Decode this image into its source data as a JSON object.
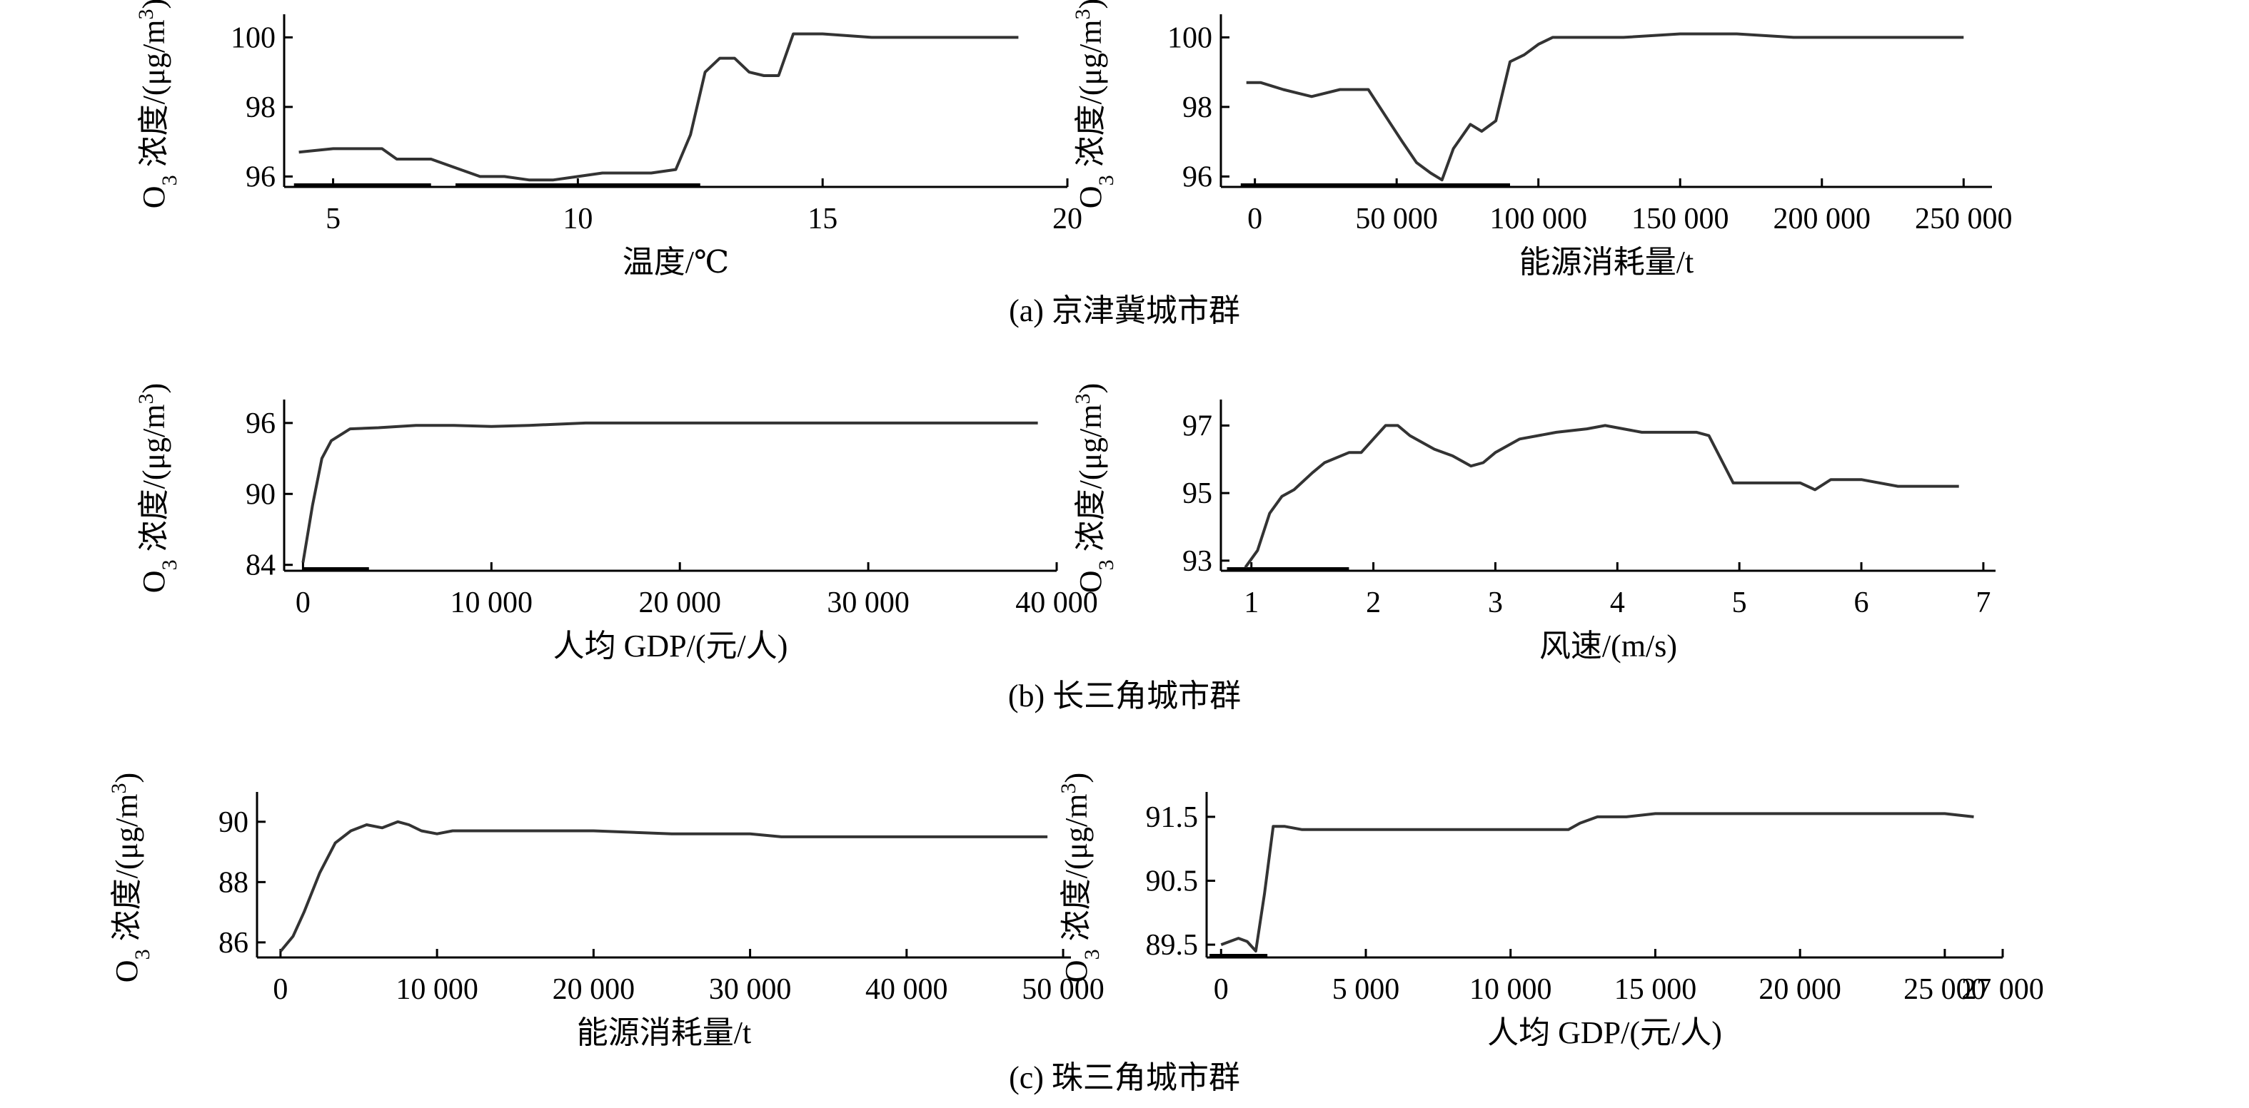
{
  "figure": {
    "captions": [
      "(a) 京津冀城市群",
      "(b) 长三角城市群",
      "(c) 珠三角城市群"
    ]
  },
  "chart_data": [
    {
      "type": "line",
      "group": "(a) 京津冀城市群",
      "xlabel": "温度/℃",
      "ylabel": "O3 浓度/(μg/m3)",
      "xlim": [
        4,
        20
      ],
      "ylim": [
        95.7,
        100.5
      ],
      "xticks": [
        5,
        10,
        15,
        20
      ],
      "xtick_labels": [
        "5",
        "10",
        "15",
        "20"
      ],
      "yticks": [
        96,
        98,
        100
      ],
      "ytick_labels": [
        "96",
        "98",
        "100"
      ],
      "rug": [
        [
          4.2,
          7.0
        ],
        [
          7.5,
          12.5
        ]
      ],
      "series": [
        {
          "x": [
            4.3,
            5,
            5.5,
            6,
            6.3,
            7,
            7.2,
            7.6,
            8,
            8.5,
            9,
            9.5,
            10,
            10.5,
            11,
            11.5,
            12,
            12.3,
            12.6,
            12.9,
            13.2,
            13.5,
            13.8,
            14.1,
            14.4,
            15,
            16,
            17,
            18,
            19
          ],
          "y": [
            96.7,
            96.8,
            96.8,
            96.8,
            96.5,
            96.5,
            96.4,
            96.2,
            96.0,
            96.0,
            95.9,
            95.9,
            96.0,
            96.1,
            96.1,
            96.1,
            96.2,
            97.2,
            99.0,
            99.4,
            99.4,
            99.0,
            98.9,
            98.9,
            100.1,
            100.1,
            100.0,
            100.0,
            100.0,
            100.0
          ]
        }
      ]
    },
    {
      "type": "line",
      "group": "(a) 京津冀城市群",
      "xlabel": "能源消耗量/t",
      "ylabel": "O3 浓度/(μg/m3)",
      "xlim": [
        -12000,
        260000
      ],
      "ylim": [
        95.7,
        100.5
      ],
      "xticks": [
        0,
        50000,
        100000,
        150000,
        200000,
        250000
      ],
      "xtick_labels": [
        "0",
        "50 000",
        "100 000",
        "150 000",
        "200 000",
        "250 000"
      ],
      "yticks": [
        96,
        98,
        100
      ],
      "ytick_labels": [
        "96",
        "98",
        "100"
      ],
      "rug": [
        [
          -5000,
          90000
        ]
      ],
      "series": [
        {
          "x": [
            -3000,
            2000,
            10000,
            20000,
            30000,
            40000,
            48000,
            52000,
            57000,
            62000,
            66000,
            70000,
            76000,
            80000,
            85000,
            90000,
            95000,
            100000,
            105000,
            110000,
            130000,
            150000,
            170000,
            190000,
            210000,
            230000,
            250000
          ],
          "y": [
            98.7,
            98.7,
            98.5,
            98.3,
            98.5,
            98.5,
            97.5,
            97.0,
            96.4,
            96.1,
            95.9,
            96.8,
            97.5,
            97.3,
            97.6,
            99.3,
            99.5,
            99.8,
            100.0,
            100.0,
            100.0,
            100.1,
            100.1,
            100.0,
            100.0,
            100.0,
            100.0
          ]
        }
      ]
    },
    {
      "type": "line",
      "group": "(b) 长三角城市群",
      "xlabel": "人均 GDP/(元/人)",
      "ylabel": "O3 浓度/(μg/m3)",
      "xlim": [
        -1000,
        40000
      ],
      "ylim": [
        83.5,
        97.5
      ],
      "xticks": [
        0,
        10000,
        20000,
        30000,
        40000
      ],
      "xtick_labels": [
        "0",
        "10 000",
        "20 000",
        "30 000",
        "40 000"
      ],
      "yticks": [
        84,
        90,
        96
      ],
      "ytick_labels": [
        "84",
        "90",
        "96"
      ],
      "rug": [
        [
          0,
          3500
        ]
      ],
      "series": [
        {
          "x": [
            0,
            500,
            1000,
            1500,
            2500,
            4000,
            6000,
            8000,
            10000,
            12000,
            15000,
            20000,
            25000,
            30000,
            35000,
            39000
          ],
          "y": [
            84.2,
            89.0,
            93.0,
            94.5,
            95.5,
            95.6,
            95.8,
            95.8,
            95.7,
            95.8,
            96.0,
            96.0,
            96.0,
            96.0,
            96.0,
            96.0
          ]
        }
      ]
    },
    {
      "type": "line",
      "group": "(b) 长三角城市群",
      "xlabel": "风速/(m/s)",
      "ylabel": "O3 浓度/(μg/m3)",
      "xlim": [
        0.75,
        7.1
      ],
      "ylim": [
        92.7,
        97.6
      ],
      "xticks": [
        1,
        2,
        3,
        4,
        5,
        6,
        7
      ],
      "xtick_labels": [
        "1",
        "2",
        "3",
        "4",
        "5",
        "6",
        "7"
      ],
      "yticks": [
        93,
        95,
        97
      ],
      "ytick_labels": [
        "93",
        "95",
        "97"
      ],
      "rug": [
        [
          0.8,
          1.8
        ]
      ],
      "series": [
        {
          "x": [
            0.95,
            1.05,
            1.15,
            1.25,
            1.35,
            1.5,
            1.6,
            1.8,
            1.9,
            2.0,
            2.1,
            2.2,
            2.3,
            2.5,
            2.65,
            2.8,
            2.9,
            3.0,
            3.2,
            3.5,
            3.75,
            3.9,
            4.2,
            4.5,
            4.65,
            4.75,
            4.85,
            4.95,
            5.2,
            5.5,
            5.62,
            5.75,
            6.0,
            6.3,
            6.8
          ],
          "y": [
            92.8,
            93.3,
            94.4,
            94.9,
            95.1,
            95.6,
            95.9,
            96.2,
            96.2,
            96.6,
            97.0,
            97.0,
            96.7,
            96.3,
            96.1,
            95.8,
            95.9,
            96.2,
            96.6,
            96.8,
            96.9,
            97.0,
            96.8,
            96.8,
            96.8,
            96.7,
            96.0,
            95.3,
            95.3,
            95.3,
            95.1,
            95.4,
            95.4,
            95.2,
            95.2
          ]
        }
      ]
    },
    {
      "type": "line",
      "group": "(c) 珠三角城市群",
      "xlabel": "能源消耗量/t",
      "ylabel": "O3 浓度/(μg/m3)",
      "xlim": [
        -1500,
        50500
      ],
      "ylim": [
        85.5,
        90.8
      ],
      "xticks": [
        0,
        10000,
        20000,
        30000,
        40000,
        50000
      ],
      "xtick_labels": [
        "0",
        "10 000",
        "20 000",
        "30 000",
        "40 000",
        "50 000"
      ],
      "yticks": [
        86,
        88,
        90
      ],
      "ytick_labels": [
        "86",
        "88",
        "90"
      ],
      "rug": [],
      "series": [
        {
          "x": [
            0,
            800,
            1500,
            2500,
            3500,
            4500,
            5500,
            6500,
            7500,
            8200,
            9000,
            10000,
            11000,
            12000,
            15000,
            18000,
            20000,
            25000,
            30000,
            32000,
            40000,
            49000
          ],
          "y": [
            85.7,
            86.2,
            87.0,
            88.3,
            89.3,
            89.7,
            89.9,
            89.8,
            90.0,
            89.9,
            89.7,
            89.6,
            89.7,
            89.7,
            89.7,
            89.7,
            89.7,
            89.6,
            89.6,
            89.5,
            89.5,
            89.5
          ]
        }
      ]
    },
    {
      "type": "line",
      "group": "(c) 珠三角城市群",
      "xlabel": "人均 GDP/(元/人)",
      "ylabel": "O3 浓度/(μg/m3)",
      "xlim": [
        -500,
        27000
      ],
      "ylim": [
        89.3,
        91.8
      ],
      "xticks": [
        0,
        5000,
        10000,
        15000,
        20000,
        25000,
        27000
      ],
      "xtick_labels": [
        "0",
        "5 000",
        "10 000",
        "15 000",
        "20 000",
        "25 000",
        "27 000"
      ],
      "yticks": [
        89.5,
        90.5,
        91.5
      ],
      "ytick_labels": [
        "89.5",
        "90.5",
        "91.5"
      ],
      "rug": [
        [
          -400,
          1600
        ]
      ],
      "series": [
        {
          "x": [
            0,
            300,
            600,
            900,
            1200,
            1500,
            1800,
            2200,
            2800,
            4000,
            6000,
            8000,
            10000,
            12000,
            12400,
            13000,
            14000,
            15000,
            17000,
            20000,
            23000,
            25000,
            26000
          ],
          "y": [
            89.5,
            89.55,
            89.6,
            89.55,
            89.4,
            90.3,
            91.35,
            91.35,
            91.3,
            91.3,
            91.3,
            91.3,
            91.3,
            91.3,
            91.4,
            91.5,
            91.5,
            91.55,
            91.55,
            91.55,
            91.55,
            91.55,
            91.5
          ]
        }
      ]
    }
  ]
}
